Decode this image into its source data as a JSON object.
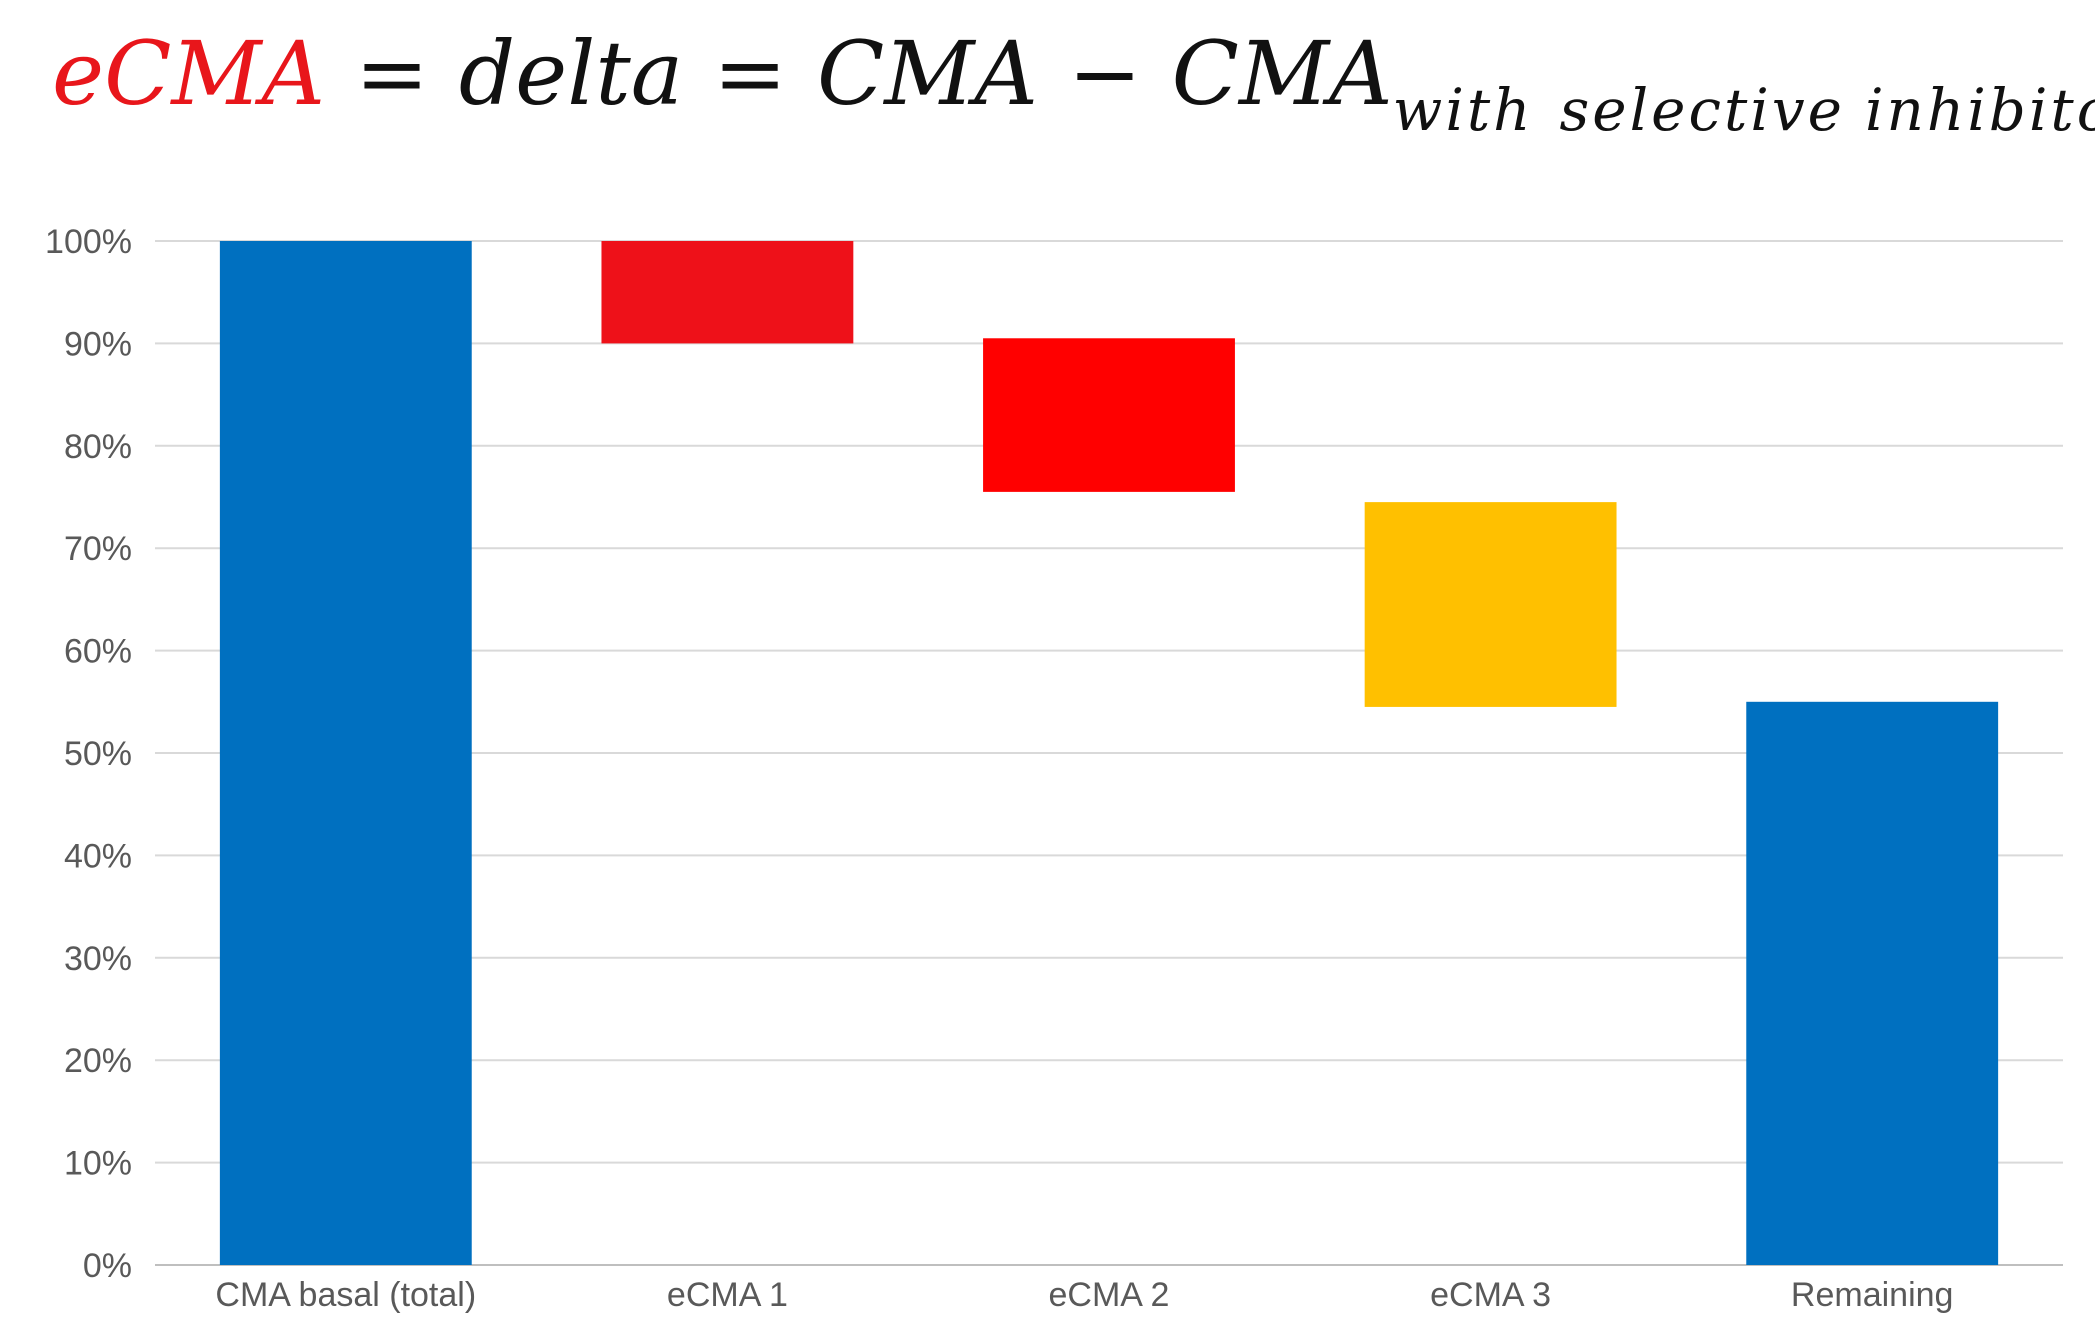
{
  "formula": {
    "lhs": "eCMA",
    "eq1": "=",
    "delta": "delta",
    "eq2": "=",
    "cma": "CMA",
    "minus": "−",
    "cma2": "CMA",
    "sub_with": "with",
    "sub_selective": "selective",
    "sub_inhibitor": "inhibitor",
    "highlight_color": "#e8161b"
  },
  "chart_data": {
    "type": "bar",
    "subtype": "waterfall",
    "title": "",
    "xlabel": "",
    "ylabel": "",
    "ylim": [
      0,
      100
    ],
    "yticks": [
      0,
      10,
      20,
      30,
      40,
      50,
      60,
      70,
      80,
      90,
      100
    ],
    "ytick_labels": [
      "0%",
      "10%",
      "20%",
      "30%",
      "40%",
      "50%",
      "60%",
      "70%",
      "80%",
      "90%",
      "100%"
    ],
    "grid": true,
    "categories": [
      "CMA basal (total)",
      "eCMA 1",
      "eCMA 2",
      "eCMA 3",
      "Remaining"
    ],
    "bars": [
      {
        "name": "CMA basal (total)",
        "bottom": 0,
        "top": 100,
        "color": "#0070c0"
      },
      {
        "name": "eCMA 1",
        "bottom": 90,
        "top": 100,
        "color": "#ee1119"
      },
      {
        "name": "eCMA 2",
        "bottom": 75.5,
        "top": 90.5,
        "color": "#ff0000"
      },
      {
        "name": "eCMA 3",
        "bottom": 54.5,
        "top": 74.5,
        "color": "#ffc000"
      },
      {
        "name": "Remaining",
        "bottom": 0,
        "top": 55,
        "color": "#0070c0"
      }
    ]
  }
}
